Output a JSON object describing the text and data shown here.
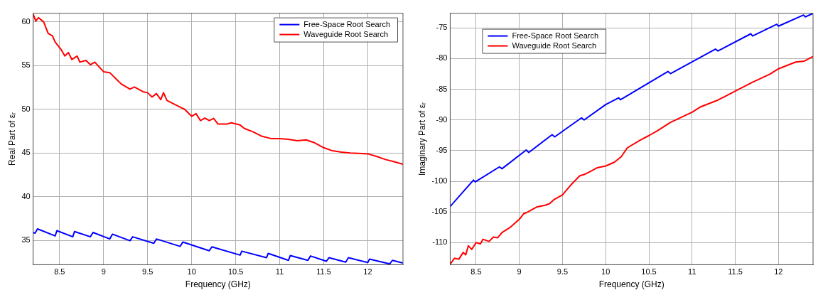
{
  "chart_data": [
    {
      "type": "line",
      "xlabel": "Frequency (GHz)",
      "ylabel": "Real Part of εᵣ",
      "xlim": [
        8.2,
        12.4
      ],
      "ylim": [
        32.2,
        61
      ],
      "xticks": [
        8.5,
        9,
        9.5,
        10,
        10.5,
        11,
        11.5,
        12
      ],
      "yticks": [
        35,
        40,
        45,
        50,
        55,
        60
      ],
      "grid": true,
      "legend": "top right",
      "line_style": "solid",
      "marker": "none",
      "series": [
        {
          "name": "Free-Space Root Search",
          "color": "#0000ff",
          "x": [
            8.2,
            8.22,
            8.25,
            8.45,
            8.47,
            8.65,
            8.67,
            8.85,
            8.88,
            9.07,
            9.1,
            9.3,
            9.33,
            9.57,
            9.6,
            9.87,
            9.9,
            10.2,
            10.23,
            10.55,
            10.57,
            10.85,
            10.87,
            11.1,
            11.12,
            11.32,
            11.35,
            11.53,
            11.56,
            11.75,
            11.78,
            12.0,
            12.02,
            12.25,
            12.28,
            12.4
          ],
          "values": [
            35.9,
            35.8,
            36.3,
            35.5,
            36.1,
            35.4,
            36.0,
            35.4,
            35.9,
            35.15,
            35.7,
            34.95,
            35.4,
            34.65,
            35.15,
            34.3,
            34.8,
            33.8,
            34.25,
            33.3,
            33.75,
            33.0,
            33.5,
            32.7,
            33.25,
            32.7,
            33.2,
            32.6,
            33.0,
            32.5,
            33.0,
            32.45,
            32.85,
            32.3,
            32.7,
            32.4
          ]
        },
        {
          "name": "Waveguide Root Search",
          "color": "#ff0000",
          "x": [
            8.2,
            8.23,
            8.26,
            8.32,
            8.37,
            8.42,
            8.45,
            8.52,
            8.56,
            8.6,
            8.64,
            8.7,
            8.73,
            8.8,
            8.85,
            8.9,
            9.0,
            9.07,
            9.15,
            9.2,
            9.3,
            9.35,
            9.45,
            9.5,
            9.55,
            9.6,
            9.65,
            9.68,
            9.72,
            9.8,
            9.88,
            9.92,
            10.0,
            10.05,
            10.1,
            10.15,
            10.2,
            10.25,
            10.3,
            10.4,
            10.45,
            10.55,
            10.6,
            10.7,
            10.8,
            10.9,
            11.0,
            11.1,
            11.2,
            11.3,
            11.4,
            11.5,
            11.6,
            11.7,
            11.8,
            12.0,
            12.1,
            12.2,
            12.3,
            12.4
          ],
          "values": [
            60.9,
            60.1,
            60.5,
            60.0,
            58.7,
            58.4,
            57.7,
            56.8,
            56.1,
            56.5,
            55.7,
            56.1,
            55.4,
            55.6,
            55.1,
            55.4,
            54.3,
            54.2,
            53.4,
            52.9,
            52.3,
            52.55,
            52.0,
            51.9,
            51.4,
            51.8,
            51.1,
            51.9,
            51.0,
            50.6,
            50.2,
            50.0,
            49.2,
            49.5,
            48.7,
            49.0,
            48.7,
            48.95,
            48.3,
            48.3,
            48.45,
            48.2,
            47.8,
            47.4,
            46.9,
            46.65,
            46.65,
            46.55,
            46.4,
            46.5,
            46.15,
            45.6,
            45.25,
            45.1,
            45.0,
            44.9,
            44.6,
            44.25,
            44.0,
            43.7
          ]
        }
      ]
    },
    {
      "type": "line",
      "xlabel": "Frequency (GHz)",
      "ylabel": "Imaginary Part of εᵣ",
      "xlim": [
        8.2,
        12.4
      ],
      "ylim": [
        -113.6,
        -72.6
      ],
      "xticks": [
        8.5,
        9,
        9.5,
        10,
        10.5,
        11,
        11.5,
        12
      ],
      "yticks": [
        -110,
        -105,
        -100,
        -95,
        -90,
        -85,
        -80,
        -75
      ],
      "grid": true,
      "legend": "top left",
      "line_style": "solid",
      "marker": "none",
      "series": [
        {
          "name": "Free-Space Root Search",
          "color": "#0000ff",
          "x": [
            8.2,
            8.47,
            8.49,
            8.77,
            8.8,
            9.08,
            9.11,
            9.38,
            9.41,
            9.72,
            9.75,
            10.0,
            10.15,
            10.17,
            10.72,
            10.75,
            11.27,
            11.3,
            11.68,
            11.7,
            11.98,
            12.0,
            12.29,
            12.31,
            12.4
          ],
          "values": [
            -104.1,
            -99.8,
            -100.1,
            -97.65,
            -97.95,
            -94.9,
            -95.3,
            -92.4,
            -92.75,
            -89.65,
            -90.0,
            -87.5,
            -86.4,
            -86.7,
            -82.1,
            -82.45,
            -78.45,
            -78.75,
            -75.95,
            -76.3,
            -74.4,
            -74.7,
            -72.9,
            -73.2,
            -72.65
          ]
        },
        {
          "name": "Waveguide Root Search",
          "color": "#ff0000",
          "x": [
            8.2,
            8.25,
            8.3,
            8.35,
            8.38,
            8.41,
            8.45,
            8.5,
            8.55,
            8.58,
            8.65,
            8.7,
            8.75,
            8.8,
            8.9,
            9.0,
            9.05,
            9.1,
            9.2,
            9.3,
            9.35,
            9.4,
            9.5,
            9.6,
            9.7,
            9.75,
            9.8,
            9.9,
            10.0,
            10.1,
            10.18,
            10.25,
            10.4,
            10.5,
            10.6,
            10.75,
            11.0,
            11.1,
            11.3,
            11.5,
            11.7,
            11.9,
            12.0,
            12.2,
            12.3,
            12.4
          ],
          "values": [
            -113.5,
            -112.55,
            -112.7,
            -111.6,
            -112.0,
            -110.5,
            -111.1,
            -110.0,
            -110.2,
            -109.45,
            -109.8,
            -109.1,
            -109.2,
            -108.35,
            -107.45,
            -106.2,
            -105.3,
            -105.0,
            -104.2,
            -103.9,
            -103.65,
            -103.0,
            -102.2,
            -100.55,
            -99.1,
            -98.9,
            -98.55,
            -97.8,
            -97.5,
            -96.9,
            -96.0,
            -94.55,
            -93.3,
            -92.55,
            -91.75,
            -90.4,
            -88.75,
            -87.85,
            -86.75,
            -85.3,
            -83.85,
            -82.55,
            -81.65,
            -80.55,
            -80.4,
            -79.65
          ]
        }
      ]
    }
  ]
}
